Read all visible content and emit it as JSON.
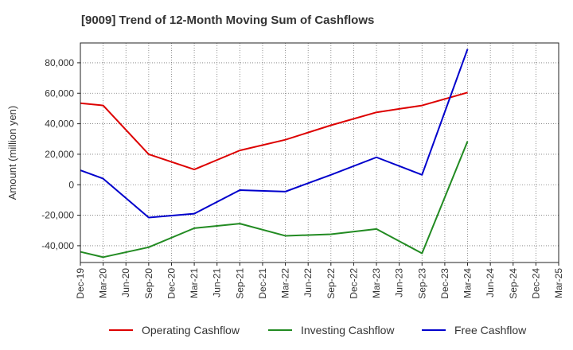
{
  "chart_data": {
    "type": "line",
    "title": "[9009]  Trend of 12-Month Moving Sum of Cashflows",
    "xlabel": "",
    "ylabel": "Amount (million yen)",
    "categories": [
      "Dec-19",
      "Mar-20",
      "Jun-20",
      "Sep-20",
      "Dec-20",
      "Mar-21",
      "Jun-21",
      "Sep-21",
      "Dec-21",
      "Mar-22",
      "Jun-22",
      "Sep-22",
      "Dec-22",
      "Mar-23",
      "Jun-23",
      "Sep-23",
      "Dec-23",
      "Mar-24",
      "Jun-24",
      "Sep-24",
      "Dec-24",
      "Mar-25"
    ],
    "ylim": [
      -51000,
      93000
    ],
    "yticks": [
      -40000,
      -20000,
      0,
      20000,
      40000,
      60000,
      80000
    ],
    "ytick_labels": [
      "-40,000",
      "-20,000",
      "0",
      "20,000",
      "40,000",
      "60,000",
      "80,000"
    ],
    "grid": true,
    "legend_position": "bottom",
    "series": [
      {
        "name": "Operating Cashflow",
        "color": "#dd0000",
        "points": [
          [
            0,
            53500
          ],
          [
            1,
            52000
          ],
          [
            3,
            20000
          ],
          [
            5,
            10000
          ],
          [
            7,
            22500
          ],
          [
            9,
            29500
          ],
          [
            11,
            39000
          ],
          [
            13,
            47500
          ],
          [
            15,
            52000
          ],
          [
            17,
            60500
          ]
        ]
      },
      {
        "name": "Investing Cashflow",
        "color": "#228b22",
        "points": [
          [
            0,
            -44000
          ],
          [
            1,
            -47500
          ],
          [
            3,
            -41000
          ],
          [
            5,
            -28500
          ],
          [
            7,
            -25500
          ],
          [
            9,
            -33500
          ],
          [
            11,
            -32500
          ],
          [
            13,
            -29000
          ],
          [
            15,
            -45000
          ],
          [
            17,
            28500
          ]
        ]
      },
      {
        "name": "Free Cashflow",
        "color": "#0000cc",
        "points": [
          [
            0,
            9500
          ],
          [
            1,
            4000
          ],
          [
            3,
            -21500
          ],
          [
            5,
            -19000
          ],
          [
            7,
            -3500
          ],
          [
            9,
            -4500
          ],
          [
            11,
            6500
          ],
          [
            13,
            18000
          ],
          [
            15,
            6500
          ],
          [
            17,
            89000
          ]
        ]
      }
    ]
  }
}
